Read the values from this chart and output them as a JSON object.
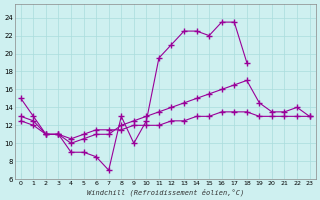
{
  "xlabel": "Windchill (Refroidissement éolien,°C)",
  "ylabel": "",
  "background_color": "#cef0f0",
  "grid_color": "#aadddd",
  "line_color": "#990099",
  "hours": [
    0,
    1,
    2,
    3,
    4,
    5,
    6,
    7,
    8,
    9,
    10,
    11,
    12,
    13,
    14,
    15,
    16,
    17,
    18,
    19,
    20,
    21,
    22,
    23
  ],
  "line1": [
    15.0,
    13.0,
    11.0,
    11.0,
    9.0,
    9.0,
    8.5,
    7.0,
    13.0,
    10.0,
    12.5,
    19.5,
    21.0,
    22.5,
    22.5,
    22.0,
    23.5,
    23.5,
    19.0,
    null,
    null,
    null,
    null,
    null
  ],
  "line2": [
    13.0,
    12.5,
    11.0,
    11.0,
    10.0,
    10.5,
    11.0,
    11.0,
    12.0,
    12.5,
    13.0,
    13.5,
    14.0,
    14.5,
    15.0,
    15.5,
    16.0,
    16.5,
    17.0,
    14.5,
    13.5,
    13.5,
    14.0,
    13.0
  ],
  "line3": [
    12.5,
    12.0,
    11.0,
    11.0,
    10.5,
    11.0,
    11.5,
    11.5,
    11.5,
    12.0,
    12.0,
    12.0,
    12.5,
    12.5,
    13.0,
    13.0,
    13.5,
    13.5,
    13.5,
    13.0,
    13.0,
    13.0,
    13.0,
    13.0
  ],
  "ylim": [
    6,
    25
  ],
  "yticks": [
    6,
    8,
    10,
    12,
    14,
    16,
    18,
    20,
    22,
    24
  ],
  "xlim": [
    0,
    23
  ]
}
